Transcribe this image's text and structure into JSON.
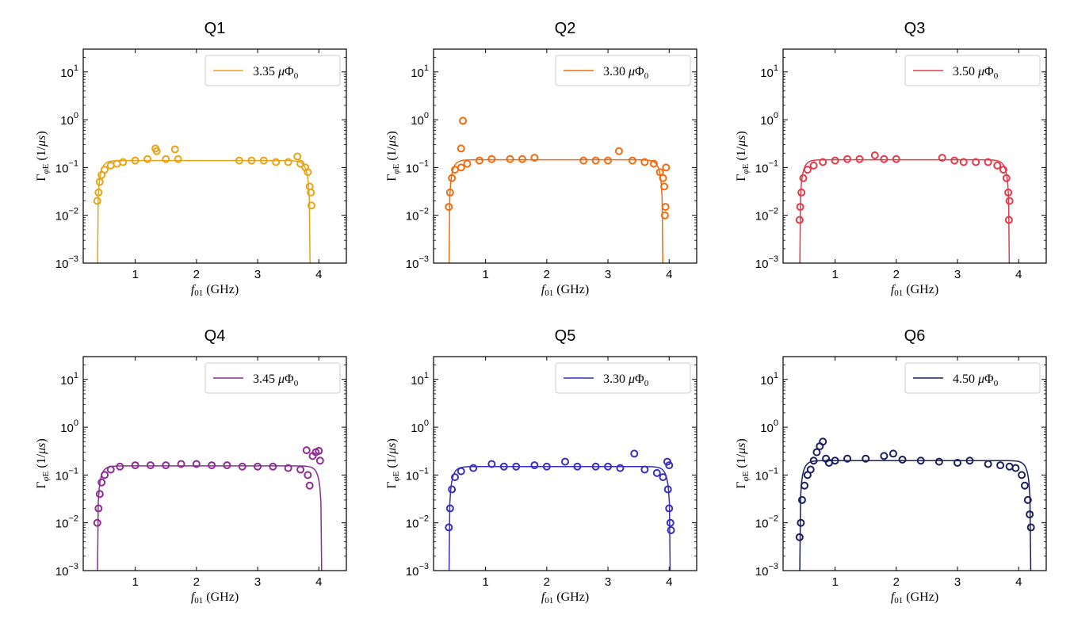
{
  "chart_data": [
    {
      "type": "scatter",
      "title": "Q1",
      "color": "#e8a317",
      "legend": "3.35 μΦ₀",
      "legend_location": "upper right",
      "xlabel": "f₀₁ (GHz)",
      "ylabel": "Γ_φE (1/μs)",
      "xlim": [
        0.15,
        4.45
      ],
      "ylim": [
        0.001,
        30
      ],
      "yscale": "log",
      "xticks": [
        "1",
        "2",
        "3",
        "4"
      ],
      "yticks": [
        "10⁻³",
        "10⁻²",
        "10⁻¹",
        "10⁰",
        "10¹"
      ],
      "fit_line": {
        "f_low": 0.38,
        "f_high": 3.86,
        "plateau": 0.14
      },
      "points": [
        [
          0.38,
          0.02
        ],
        [
          0.4,
          0.03
        ],
        [
          0.42,
          0.05
        ],
        [
          0.45,
          0.07
        ],
        [
          0.5,
          0.09
        ],
        [
          0.6,
          0.11
        ],
        [
          0.7,
          0.12
        ],
        [
          0.8,
          0.13
        ],
        [
          1.0,
          0.14
        ],
        [
          1.2,
          0.15
        ],
        [
          1.33,
          0.25
        ],
        [
          1.35,
          0.22
        ],
        [
          1.5,
          0.15
        ],
        [
          1.65,
          0.24
        ],
        [
          1.7,
          0.15
        ],
        [
          2.7,
          0.14
        ],
        [
          2.9,
          0.14
        ],
        [
          3.1,
          0.14
        ],
        [
          3.3,
          0.13
        ],
        [
          3.5,
          0.13
        ],
        [
          3.65,
          0.17
        ],
        [
          3.7,
          0.12
        ],
        [
          3.78,
          0.1
        ],
        [
          3.82,
          0.08
        ],
        [
          3.85,
          0.04
        ],
        [
          3.87,
          0.03
        ],
        [
          3.88,
          0.016
        ]
      ]
    },
    {
      "type": "scatter",
      "title": "Q2",
      "color": "#f26b0f",
      "legend": "3.30 μΦ₀",
      "legend_location": "upper right",
      "xlabel": "f₀₁ (GHz)",
      "ylabel": "Γ_φE (1/μs)",
      "xlim": [
        0.15,
        4.45
      ],
      "ylim": [
        0.001,
        30
      ],
      "yscale": "log",
      "xticks": [
        "1",
        "2",
        "3",
        "4"
      ],
      "yticks": [
        "10⁻³",
        "10⁻²",
        "10⁻¹",
        "10⁰",
        "10¹"
      ],
      "fit_line": {
        "f_low": 0.4,
        "f_high": 3.9,
        "plateau": 0.145
      },
      "points": [
        [
          0.4,
          0.015
        ],
        [
          0.42,
          0.03
        ],
        [
          0.45,
          0.06
        ],
        [
          0.5,
          0.09
        ],
        [
          0.6,
          0.1
        ],
        [
          0.63,
          0.95
        ],
        [
          0.6,
          0.25
        ],
        [
          0.7,
          0.12
        ],
        [
          0.9,
          0.14
        ],
        [
          1.1,
          0.15
        ],
        [
          1.4,
          0.15
        ],
        [
          1.6,
          0.15
        ],
        [
          1.8,
          0.16
        ],
        [
          2.6,
          0.14
        ],
        [
          2.8,
          0.14
        ],
        [
          3.0,
          0.14
        ],
        [
          3.18,
          0.22
        ],
        [
          3.4,
          0.14
        ],
        [
          3.6,
          0.13
        ],
        [
          3.75,
          0.12
        ],
        [
          3.85,
          0.08
        ],
        [
          3.9,
          0.06
        ],
        [
          3.92,
          0.04
        ],
        [
          3.94,
          0.015
        ],
        [
          3.93,
          0.01
        ],
        [
          3.95,
          0.1
        ]
      ]
    },
    {
      "type": "scatter",
      "title": "Q3",
      "color": "#e23b49",
      "legend": "3.50 μΦ₀",
      "legend_location": "upper right",
      "xlabel": "f₀₁ (GHz)",
      "ylabel": "Γ_φE (1/μs)",
      "xlim": [
        0.15,
        4.45
      ],
      "ylim": [
        0.001,
        30
      ],
      "yscale": "log",
      "xticks": [
        "1",
        "2",
        "3",
        "4"
      ],
      "yticks": [
        "10⁻³",
        "10⁻²",
        "10⁻¹",
        "10⁰",
        "10¹"
      ],
      "fit_line": {
        "f_low": 0.42,
        "f_high": 3.85,
        "plateau": 0.145
      },
      "points": [
        [
          0.42,
          0.008
        ],
        [
          0.43,
          0.015
        ],
        [
          0.45,
          0.03
        ],
        [
          0.48,
          0.06
        ],
        [
          0.55,
          0.09
        ],
        [
          0.65,
          0.11
        ],
        [
          0.8,
          0.13
        ],
        [
          1.0,
          0.14
        ],
        [
          1.2,
          0.15
        ],
        [
          1.4,
          0.15
        ],
        [
          1.65,
          0.18
        ],
        [
          1.8,
          0.15
        ],
        [
          2.0,
          0.15
        ],
        [
          2.75,
          0.16
        ],
        [
          2.95,
          0.14
        ],
        [
          3.1,
          0.13
        ],
        [
          3.3,
          0.13
        ],
        [
          3.5,
          0.13
        ],
        [
          3.65,
          0.11
        ],
        [
          3.75,
          0.09
        ],
        [
          3.8,
          0.06
        ],
        [
          3.83,
          0.03
        ],
        [
          3.85,
          0.02
        ],
        [
          3.84,
          0.008
        ]
      ]
    },
    {
      "type": "scatter",
      "title": "Q4",
      "color": "#8e2c94",
      "legend": "3.45 μΦ₀",
      "legend_location": "upper right",
      "xlabel": "f₀₁ (GHz)",
      "ylabel": "Γ_φE (1/μs)",
      "xlim": [
        0.15,
        4.45
      ],
      "ylim": [
        0.001,
        30
      ],
      "yscale": "log",
      "xticks": [
        "1",
        "2",
        "3",
        "4"
      ],
      "yticks": [
        "10⁻³",
        "10⁻²",
        "10⁻¹",
        "10⁰",
        "10¹"
      ],
      "fit_line": {
        "f_low": 0.38,
        "f_high": 4.05,
        "plateau": 0.155
      },
      "points": [
        [
          0.38,
          0.01
        ],
        [
          0.4,
          0.02
        ],
        [
          0.42,
          0.04
        ],
        [
          0.45,
          0.07
        ],
        [
          0.5,
          0.1
        ],
        [
          0.6,
          0.13
        ],
        [
          0.75,
          0.15
        ],
        [
          1.0,
          0.16
        ],
        [
          1.25,
          0.16
        ],
        [
          1.5,
          0.16
        ],
        [
          1.75,
          0.17
        ],
        [
          2.0,
          0.17
        ],
        [
          2.25,
          0.16
        ],
        [
          2.5,
          0.16
        ],
        [
          2.75,
          0.15
        ],
        [
          3.0,
          0.15
        ],
        [
          3.25,
          0.15
        ],
        [
          3.5,
          0.14
        ],
        [
          3.7,
          0.13
        ],
        [
          3.8,
          0.33
        ],
        [
          3.82,
          0.1
        ],
        [
          3.85,
          0.06
        ],
        [
          3.9,
          0.25
        ],
        [
          3.95,
          0.3
        ],
        [
          4.0,
          0.32
        ],
        [
          4.02,
          0.2
        ]
      ]
    },
    {
      "type": "scatter",
      "title": "Q5",
      "color": "#3a2fb8",
      "legend": "3.30 μΦ₀",
      "legend_location": "upper right",
      "xlabel": "f₀₁ (GHz)",
      "ylabel": "Γ_φE (1/μs)",
      "xlim": [
        0.15,
        4.45
      ],
      "ylim": [
        0.001,
        30
      ],
      "yscale": "log",
      "xticks": [
        "1",
        "2",
        "3",
        "4"
      ],
      "yticks": [
        "10⁻³",
        "10⁻²",
        "10⁻¹",
        "10⁰",
        "10¹"
      ],
      "fit_line": {
        "f_low": 0.4,
        "f_high": 4.02,
        "plateau": 0.15
      },
      "points": [
        [
          0.4,
          0.008
        ],
        [
          0.42,
          0.02
        ],
        [
          0.45,
          0.05
        ],
        [
          0.5,
          0.09
        ],
        [
          0.6,
          0.12
        ],
        [
          0.8,
          0.14
        ],
        [
          1.1,
          0.17
        ],
        [
          1.3,
          0.15
        ],
        [
          1.5,
          0.15
        ],
        [
          1.8,
          0.16
        ],
        [
          2.0,
          0.15
        ],
        [
          2.3,
          0.19
        ],
        [
          2.5,
          0.15
        ],
        [
          2.8,
          0.15
        ],
        [
          3.0,
          0.15
        ],
        [
          3.2,
          0.14
        ],
        [
          3.43,
          0.28
        ],
        [
          3.6,
          0.13
        ],
        [
          3.8,
          0.11
        ],
        [
          3.9,
          0.09
        ],
        [
          3.97,
          0.19
        ],
        [
          4.0,
          0.16
        ],
        [
          3.98,
          0.05
        ],
        [
          4.0,
          0.02
        ],
        [
          4.02,
          0.01
        ],
        [
          4.03,
          0.007
        ]
      ]
    },
    {
      "type": "scatter",
      "title": "Q6",
      "color": "#1b1f5e",
      "legend": "4.50 μΦ₀",
      "legend_location": "upper right",
      "xlabel": "f₀₁ (GHz)",
      "ylabel": "Γ_φE (1/μs)",
      "xlim": [
        0.15,
        4.45
      ],
      "ylim": [
        0.001,
        30
      ],
      "yscale": "log",
      "xticks": [
        "1",
        "2",
        "3",
        "4"
      ],
      "yticks": [
        "10⁻³",
        "10⁻²",
        "10⁻¹",
        "10⁰",
        "10¹"
      ],
      "fit_line": {
        "f_low": 0.42,
        "f_high": 4.2,
        "plateau": 0.2
      },
      "points": [
        [
          0.42,
          0.005
        ],
        [
          0.44,
          0.01
        ],
        [
          0.46,
          0.03
        ],
        [
          0.5,
          0.06
        ],
        [
          0.55,
          0.1
        ],
        [
          0.6,
          0.13
        ],
        [
          0.65,
          0.2
        ],
        [
          0.7,
          0.3
        ],
        [
          0.75,
          0.4
        ],
        [
          0.8,
          0.5
        ],
        [
          0.85,
          0.22
        ],
        [
          0.9,
          0.18
        ],
        [
          1.0,
          0.2
        ],
        [
          1.2,
          0.22
        ],
        [
          1.5,
          0.22
        ],
        [
          1.8,
          0.25
        ],
        [
          1.95,
          0.28
        ],
        [
          2.1,
          0.21
        ],
        [
          2.4,
          0.2
        ],
        [
          2.7,
          0.19
        ],
        [
          3.0,
          0.18
        ],
        [
          3.2,
          0.2
        ],
        [
          3.5,
          0.17
        ],
        [
          3.7,
          0.16
        ],
        [
          3.85,
          0.15
        ],
        [
          3.95,
          0.14
        ],
        [
          4.05,
          0.1
        ],
        [
          4.1,
          0.06
        ],
        [
          4.15,
          0.03
        ],
        [
          4.18,
          0.015
        ],
        [
          4.2,
          0.008
        ]
      ]
    }
  ]
}
